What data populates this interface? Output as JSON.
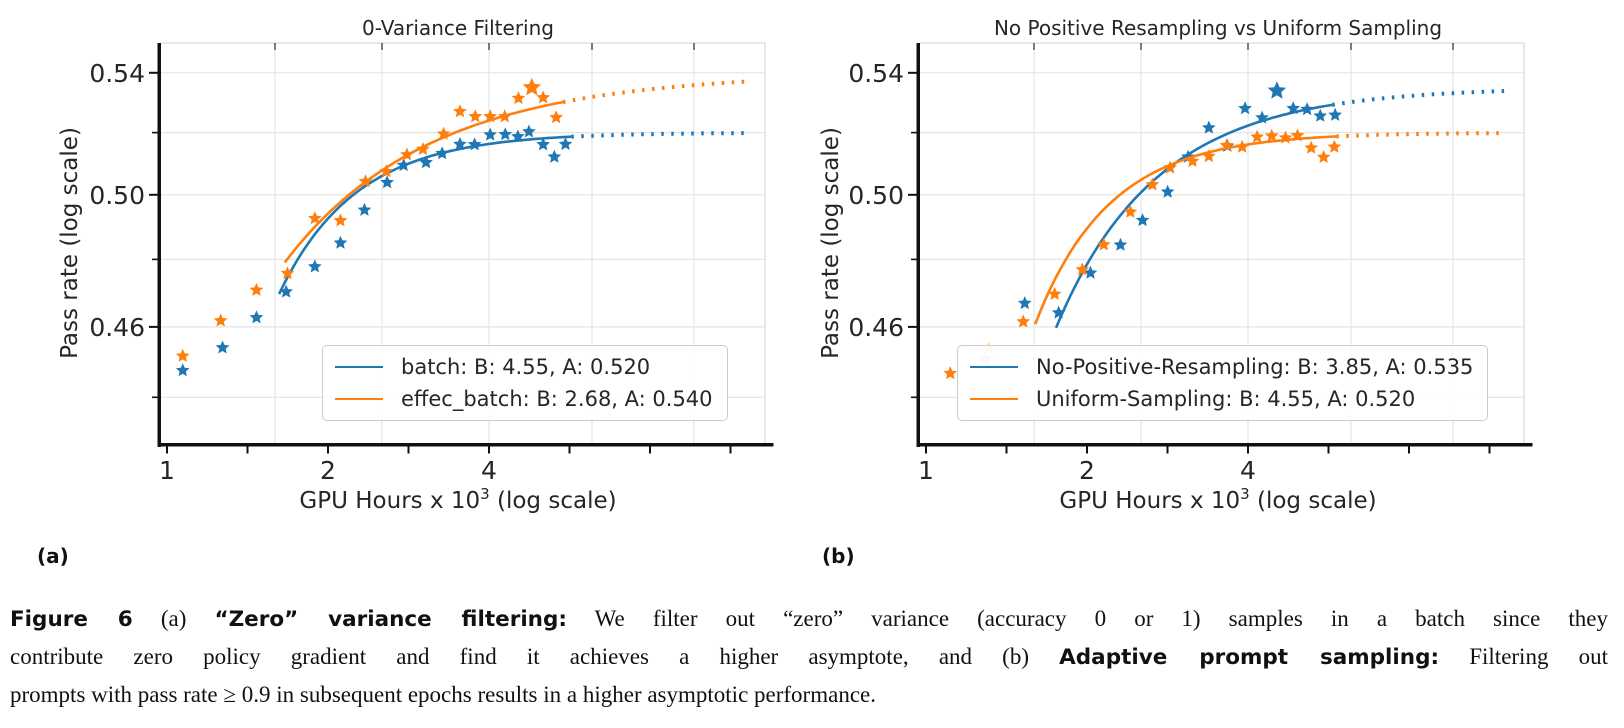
{
  "figure": {
    "panel_labels": [
      "(a)",
      "(b)"
    ],
    "caption_lines": [
      [
        {
          "t": "Figure 6",
          "b": 1
        },
        {
          "t": "  (a) ",
          "b": 0
        },
        {
          "t": "“Zero” variance filtering:",
          "b": 1
        },
        {
          "t": "  We filter out “zero” variance (accuracy 0 or 1) samples in a batch since they",
          "b": 0
        }
      ],
      [
        {
          "t": "contribute zero policy gradient and find it achieves a higher asymptote, and (b) ",
          "b": 0
        },
        {
          "t": "Adaptive prompt sampling:",
          "b": 1
        },
        {
          "t": " Filtering out",
          "b": 0
        }
      ],
      [
        {
          "t": "prompts with pass rate ≥ 0.9 in subsequent epochs results in a higher asymptotic performance.",
          "b": 0
        }
      ]
    ]
  },
  "chart_data": [
    {
      "type": "scatter",
      "title": "0-Variance Filtering",
      "xlabel": {
        "pre": "GPU Hours x 10",
        "sup": "3",
        "post": " (log scale)"
      },
      "ylabel": "Pass rate (log scale)",
      "x_ticks": [
        {
          "v": 1,
          "label": "1"
        },
        {
          "v": 2,
          "label": "2"
        },
        {
          "v": 4,
          "label": "4"
        }
      ],
      "y_ticks": [
        {
          "v": 0.46,
          "label": "0.46"
        },
        {
          "v": 0.5,
          "label": "0.50"
        },
        {
          "v": 0.54,
          "label": "0.54"
        }
      ],
      "xlim": [
        0.97,
        12.7
      ],
      "ylim": [
        0.4275,
        0.5513
      ],
      "grid": true,
      "legend_position": "lower center",
      "series": [
        {
          "name": "batch: B: 4.55, A: 0.520",
          "color": "#1f77b4",
          "marker": "star",
          "points": [
            [
              1.07,
              0.4475
            ],
            [
              1.27,
              0.454
            ],
            [
              1.47,
              0.4627
            ],
            [
              1.67,
              0.4703
            ],
            [
              1.89,
              0.4778
            ],
            [
              2.11,
              0.485
            ],
            [
              2.34,
              0.4952
            ],
            [
              2.58,
              0.5039
            ],
            [
              2.77,
              0.5094
            ],
            [
              3.05,
              0.5103
            ],
            [
              3.27,
              0.5132
            ],
            [
              3.53,
              0.5162
            ],
            [
              3.76,
              0.5161
            ],
            [
              4.02,
              0.5193
            ],
            [
              4.29,
              0.5194
            ],
            [
              4.53,
              0.5187
            ],
            [
              4.75,
              0.5203
            ],
            [
              5.05,
              0.5161
            ],
            [
              5.3,
              0.5121
            ],
            [
              5.56,
              0.5162
            ]
          ],
          "faint_points": [],
          "fit": {
            "A": 0.52,
            "B_label": 4.55,
            "a": 0.05,
            "u0": 0.7,
            "s": 0.5,
            "solid_start": 1.62,
            "solid_end": 5.7,
            "dotted_end": 12.1
          }
        },
        {
          "name": "effec_batch: B: 2.68, A: 0.540",
          "color": "#ff7f0e",
          "marker": "star",
          "points": [
            [
              1.07,
              0.4516
            ],
            [
              1.26,
              0.4618
            ],
            [
              1.47,
              0.4708
            ],
            [
              1.68,
              0.4758
            ],
            [
              1.89,
              0.4926
            ],
            [
              2.11,
              0.4919
            ],
            [
              2.35,
              0.5042
            ],
            [
              2.57,
              0.5074
            ],
            [
              2.81,
              0.5128
            ],
            [
              3.01,
              0.5146
            ],
            [
              3.29,
              0.5196
            ],
            [
              3.53,
              0.527
            ],
            [
              3.77,
              0.5253
            ],
            [
              4.02,
              0.5253
            ],
            [
              4.28,
              0.5253
            ],
            [
              4.54,
              0.5314
            ],
            [
              4.81,
              0.535,
              1.35
            ],
            [
              5.05,
              0.5316
            ],
            [
              5.34,
              0.525
            ]
          ],
          "faint_points": [],
          "fit": {
            "A": 0.54,
            "B_label": 2.68,
            "a": 0.061,
            "u0": 0.73,
            "s": 0.95,
            "solid_start": 1.66,
            "solid_end": 5.5,
            "dotted_end": 12.1
          }
        }
      ]
    },
    {
      "type": "scatter",
      "title": "No Positive Resampling vs Uniform Sampling",
      "xlabel": {
        "pre": "GPU Hours x 10",
        "sup": "3",
        "post": " (log scale)"
      },
      "ylabel": "Pass rate (log scale)",
      "x_ticks": [
        {
          "v": 1,
          "label": "1"
        },
        {
          "v": 2,
          "label": "2"
        },
        {
          "v": 4,
          "label": "4"
        }
      ],
      "y_ticks": [
        {
          "v": 0.46,
          "label": "0.46"
        },
        {
          "v": 0.5,
          "label": "0.50"
        },
        {
          "v": 0.54,
          "label": "0.54"
        }
      ],
      "xlim": [
        0.97,
        12.7
      ],
      "ylim": [
        0.4275,
        0.5513
      ],
      "grid": true,
      "legend_position": "lower center",
      "series": [
        {
          "name": "No-Positive-Resampling: B: 3.85, A: 0.535",
          "color": "#1f77b4",
          "marker": "star",
          "points": [
            [
              1.53,
              0.4669
            ],
            [
              1.77,
              0.4641
            ],
            [
              2.03,
              0.4759
            ],
            [
              2.31,
              0.4844
            ],
            [
              2.54,
              0.492
            ],
            [
              2.83,
              0.5009
            ],
            [
              3.09,
              0.5121
            ],
            [
              3.38,
              0.5216
            ],
            [
              3.66,
              0.5156
            ],
            [
              3.95,
              0.528
            ],
            [
              4.25,
              0.5249
            ],
            [
              4.53,
              0.5339,
              1.35
            ],
            [
              4.86,
              0.528
            ],
            [
              5.16,
              0.5277
            ],
            [
              5.46,
              0.5255
            ],
            [
              5.82,
              0.5258
            ]
          ],
          "faint_points": [
            [
              1.29,
              0.4509
            ]
          ],
          "fit": {
            "A": 0.535,
            "B_label": 3.85,
            "a": 0.075,
            "u0": 0.81,
            "s": 0.67,
            "solid_start": 1.75,
            "solid_end": 5.75,
            "dotted_end": 12.1
          }
        },
        {
          "name": "Uniform-Sampling: B: 4.55, A: 0.520",
          "color": "#ff7f0e",
          "marker": "star",
          "points": [
            [
              1.11,
              0.4467
            ],
            [
              1.52,
              0.4615
            ],
            [
              1.74,
              0.4696
            ],
            [
              1.96,
              0.4769
            ],
            [
              2.15,
              0.4845
            ],
            [
              2.41,
              0.4946
            ],
            [
              2.65,
              0.5032
            ],
            [
              2.86,
              0.5086
            ],
            [
              3.15,
              0.5107
            ],
            [
              3.38,
              0.5123
            ],
            [
              3.65,
              0.5158
            ],
            [
              3.9,
              0.5153
            ],
            [
              4.16,
              0.5186
            ],
            [
              4.43,
              0.5189
            ],
            [
              4.7,
              0.5183
            ],
            [
              4.95,
              0.519
            ],
            [
              5.25,
              0.515
            ],
            [
              5.54,
              0.512
            ],
            [
              5.8,
              0.5153
            ]
          ],
          "faint_points": [
            [
              1.31,
              0.4538
            ]
          ],
          "fit": {
            "A": 0.52,
            "B_label": 4.55,
            "a": 0.059,
            "u0": 0.68,
            "s": 0.485,
            "solid_start": 1.6,
            "solid_end": 5.85,
            "dotted_end": 12.1
          }
        }
      ]
    }
  ]
}
